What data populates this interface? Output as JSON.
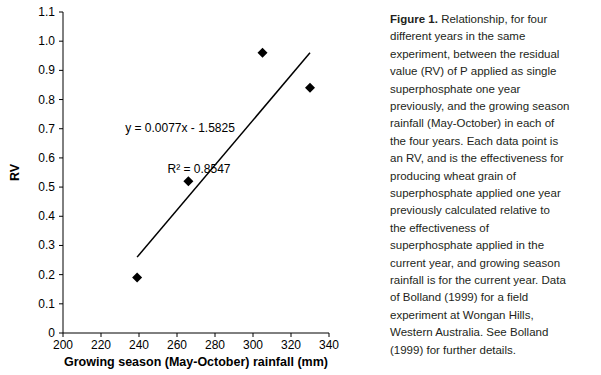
{
  "chart_data": {
    "type": "scatter",
    "x_label": "Growing season (May-October) rainfall (mm)",
    "y_label": "RV",
    "series": [
      {
        "type": "scatter",
        "marker": "diamond",
        "color": "#000000",
        "x": [
          239,
          266,
          305,
          330
        ],
        "values": [
          0.19,
          0.52,
          0.96,
          0.84
        ]
      },
      {
        "type": "line",
        "line_style": "solid",
        "color": "#000000",
        "x": [
          239,
          330
        ],
        "values": [
          0.26,
          0.96
        ]
      }
    ],
    "annotations": [
      "y = 0.0077x - 1.5825",
      "R² = 0.8547"
    ],
    "xlim": [
      200,
      340
    ],
    "xticks": [
      200,
      220,
      240,
      260,
      280,
      300,
      320,
      340
    ],
    "ylim": [
      0,
      1.1
    ],
    "yticks": [
      0,
      0.1,
      0.2,
      0.3,
      0.4,
      0.5,
      0.6,
      0.7,
      0.8,
      0.9,
      {
        "value": 1,
        "label": "1.0"
      },
      1.1
    ],
    "grid": false
  },
  "caption": {
    "label": "Figure 1.",
    "lines": [
      "Relationship, for four",
      "different years in the same",
      "experiment, between the residual",
      "value (RV) of P applied as single",
      "superphosphate one year",
      "previously, and the growing season",
      "rainfall (May-October) in each of",
      "the four years. Each data point is",
      "an RV, and is the effectiveness for",
      "producing wheat grain of",
      "superphosphate applied one year",
      "previously calculated relative to",
      "the effectiveness of",
      "superphosphate applied in the",
      "current year, and growing season",
      "rainfall is for the current year. Data",
      "of Bolland (1999) for a field",
      "experiment at Wongan Hills,",
      "Western Australia. See Bolland",
      "(1999) for further details."
    ]
  }
}
